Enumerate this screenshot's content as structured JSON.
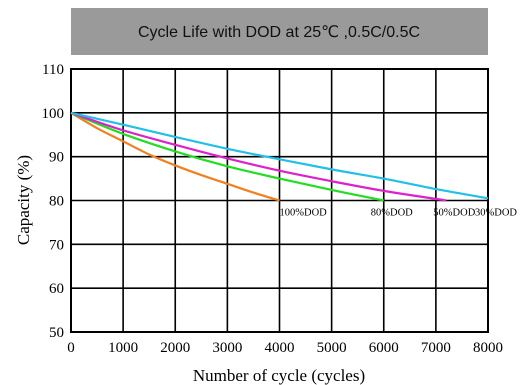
{
  "chart_data": {
    "type": "line",
    "title": "Cycle Life with DOD at 25℃ ,0.5C/0.5C",
    "xlabel": "Number of cycle (cycles)",
    "ylabel": "Capacity (%)",
    "xlim": [
      0,
      8000
    ],
    "ylim": [
      50,
      110
    ],
    "xticks": [
      "0",
      "1000",
      "2000",
      "3000",
      "4000",
      "5000",
      "6000",
      "7000",
      "8000"
    ],
    "yticks": [
      "50",
      "60",
      "70",
      "80",
      "90",
      "100",
      "110"
    ],
    "grid": true,
    "legend": "labels at line ends",
    "series": [
      {
        "name": "100%DOD",
        "color": "#f08020",
        "x": [
          0,
          500,
          1000,
          1500,
          2000,
          2500,
          3000,
          3500,
          4000
        ],
        "y": [
          100,
          96.5,
          93.5,
          90.5,
          88,
          85.8,
          83.8,
          81.8,
          80
        ]
      },
      {
        "name": "80%DOD",
        "color": "#22dd22",
        "x": [
          0,
          1000,
          2000,
          3000,
          4000,
          5000,
          6000
        ],
        "y": [
          100,
          95.2,
          91.2,
          87.8,
          85,
          82.4,
          80
        ]
      },
      {
        "name": "50%DOD",
        "color": "#dd22cc",
        "x": [
          0,
          1000,
          2000,
          3000,
          4000,
          5000,
          6000,
          7200
        ],
        "y": [
          100,
          96,
          92.7,
          89.6,
          86.8,
          84.4,
          82.2,
          80
        ]
      },
      {
        "name": "30%DOD",
        "color": "#22c0e8",
        "x": [
          0,
          1000,
          2000,
          3000,
          4000,
          5000,
          6000,
          7000,
          8000
        ],
        "y": [
          100,
          97.3,
          94.5,
          91.8,
          89.4,
          87.1,
          85,
          82.6,
          80.5
        ]
      }
    ]
  }
}
